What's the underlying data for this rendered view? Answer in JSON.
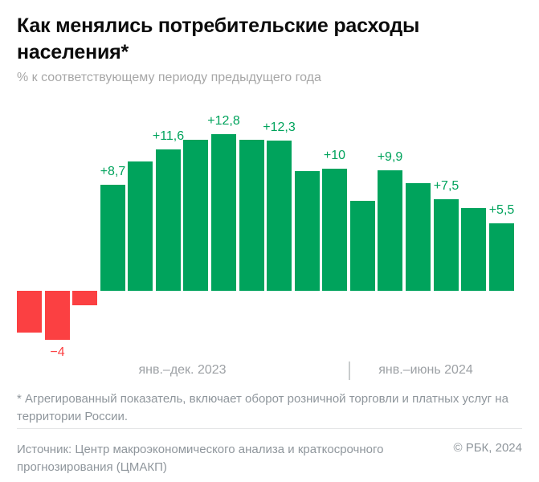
{
  "header": {
    "title": "Как менялись потребительские расходы населения*",
    "subtitle": "% к соответствующему периоду предыдущего года"
  },
  "chart_data": {
    "type": "bar",
    "title": "Как менялись потребительские расходы населения*",
    "ylabel": "% к соответствующему периоду предыдущего года",
    "unit": "%",
    "baseline": 0,
    "grid": false,
    "legend": false,
    "groups": [
      {
        "label": "янв.–дек. 2023",
        "bar_count": 12
      },
      {
        "label": "янв.–июнь 2024",
        "bar_count": 6
      }
    ],
    "values": [
      -3.4,
      -4,
      -1.2,
      8.7,
      10.6,
      11.6,
      12.4,
      12.8,
      12.4,
      12.3,
      9.8,
      10,
      7.4,
      9.9,
      8.8,
      7.5,
      6.8,
      5.5
    ],
    "bar_labels": [
      "",
      "−4",
      "",
      "+8,7",
      "",
      "+11,6",
      "",
      "+12,8",
      "",
      "+12,3",
      "",
      "+10",
      "",
      "+9,9",
      "",
      "+7,5",
      "",
      "+5,5"
    ],
    "colors": {
      "positive": "#00A35C",
      "negative": "#FB4042"
    }
  },
  "footnote": "* Агрегированный показатель, включает оборот розничной торговли и платных услуг на территории России.",
  "source": "Источник: Центр макроэкономического анализа и краткосрочного прогнозирования (ЦМАКП)",
  "copyright": "© РБК, 2024"
}
